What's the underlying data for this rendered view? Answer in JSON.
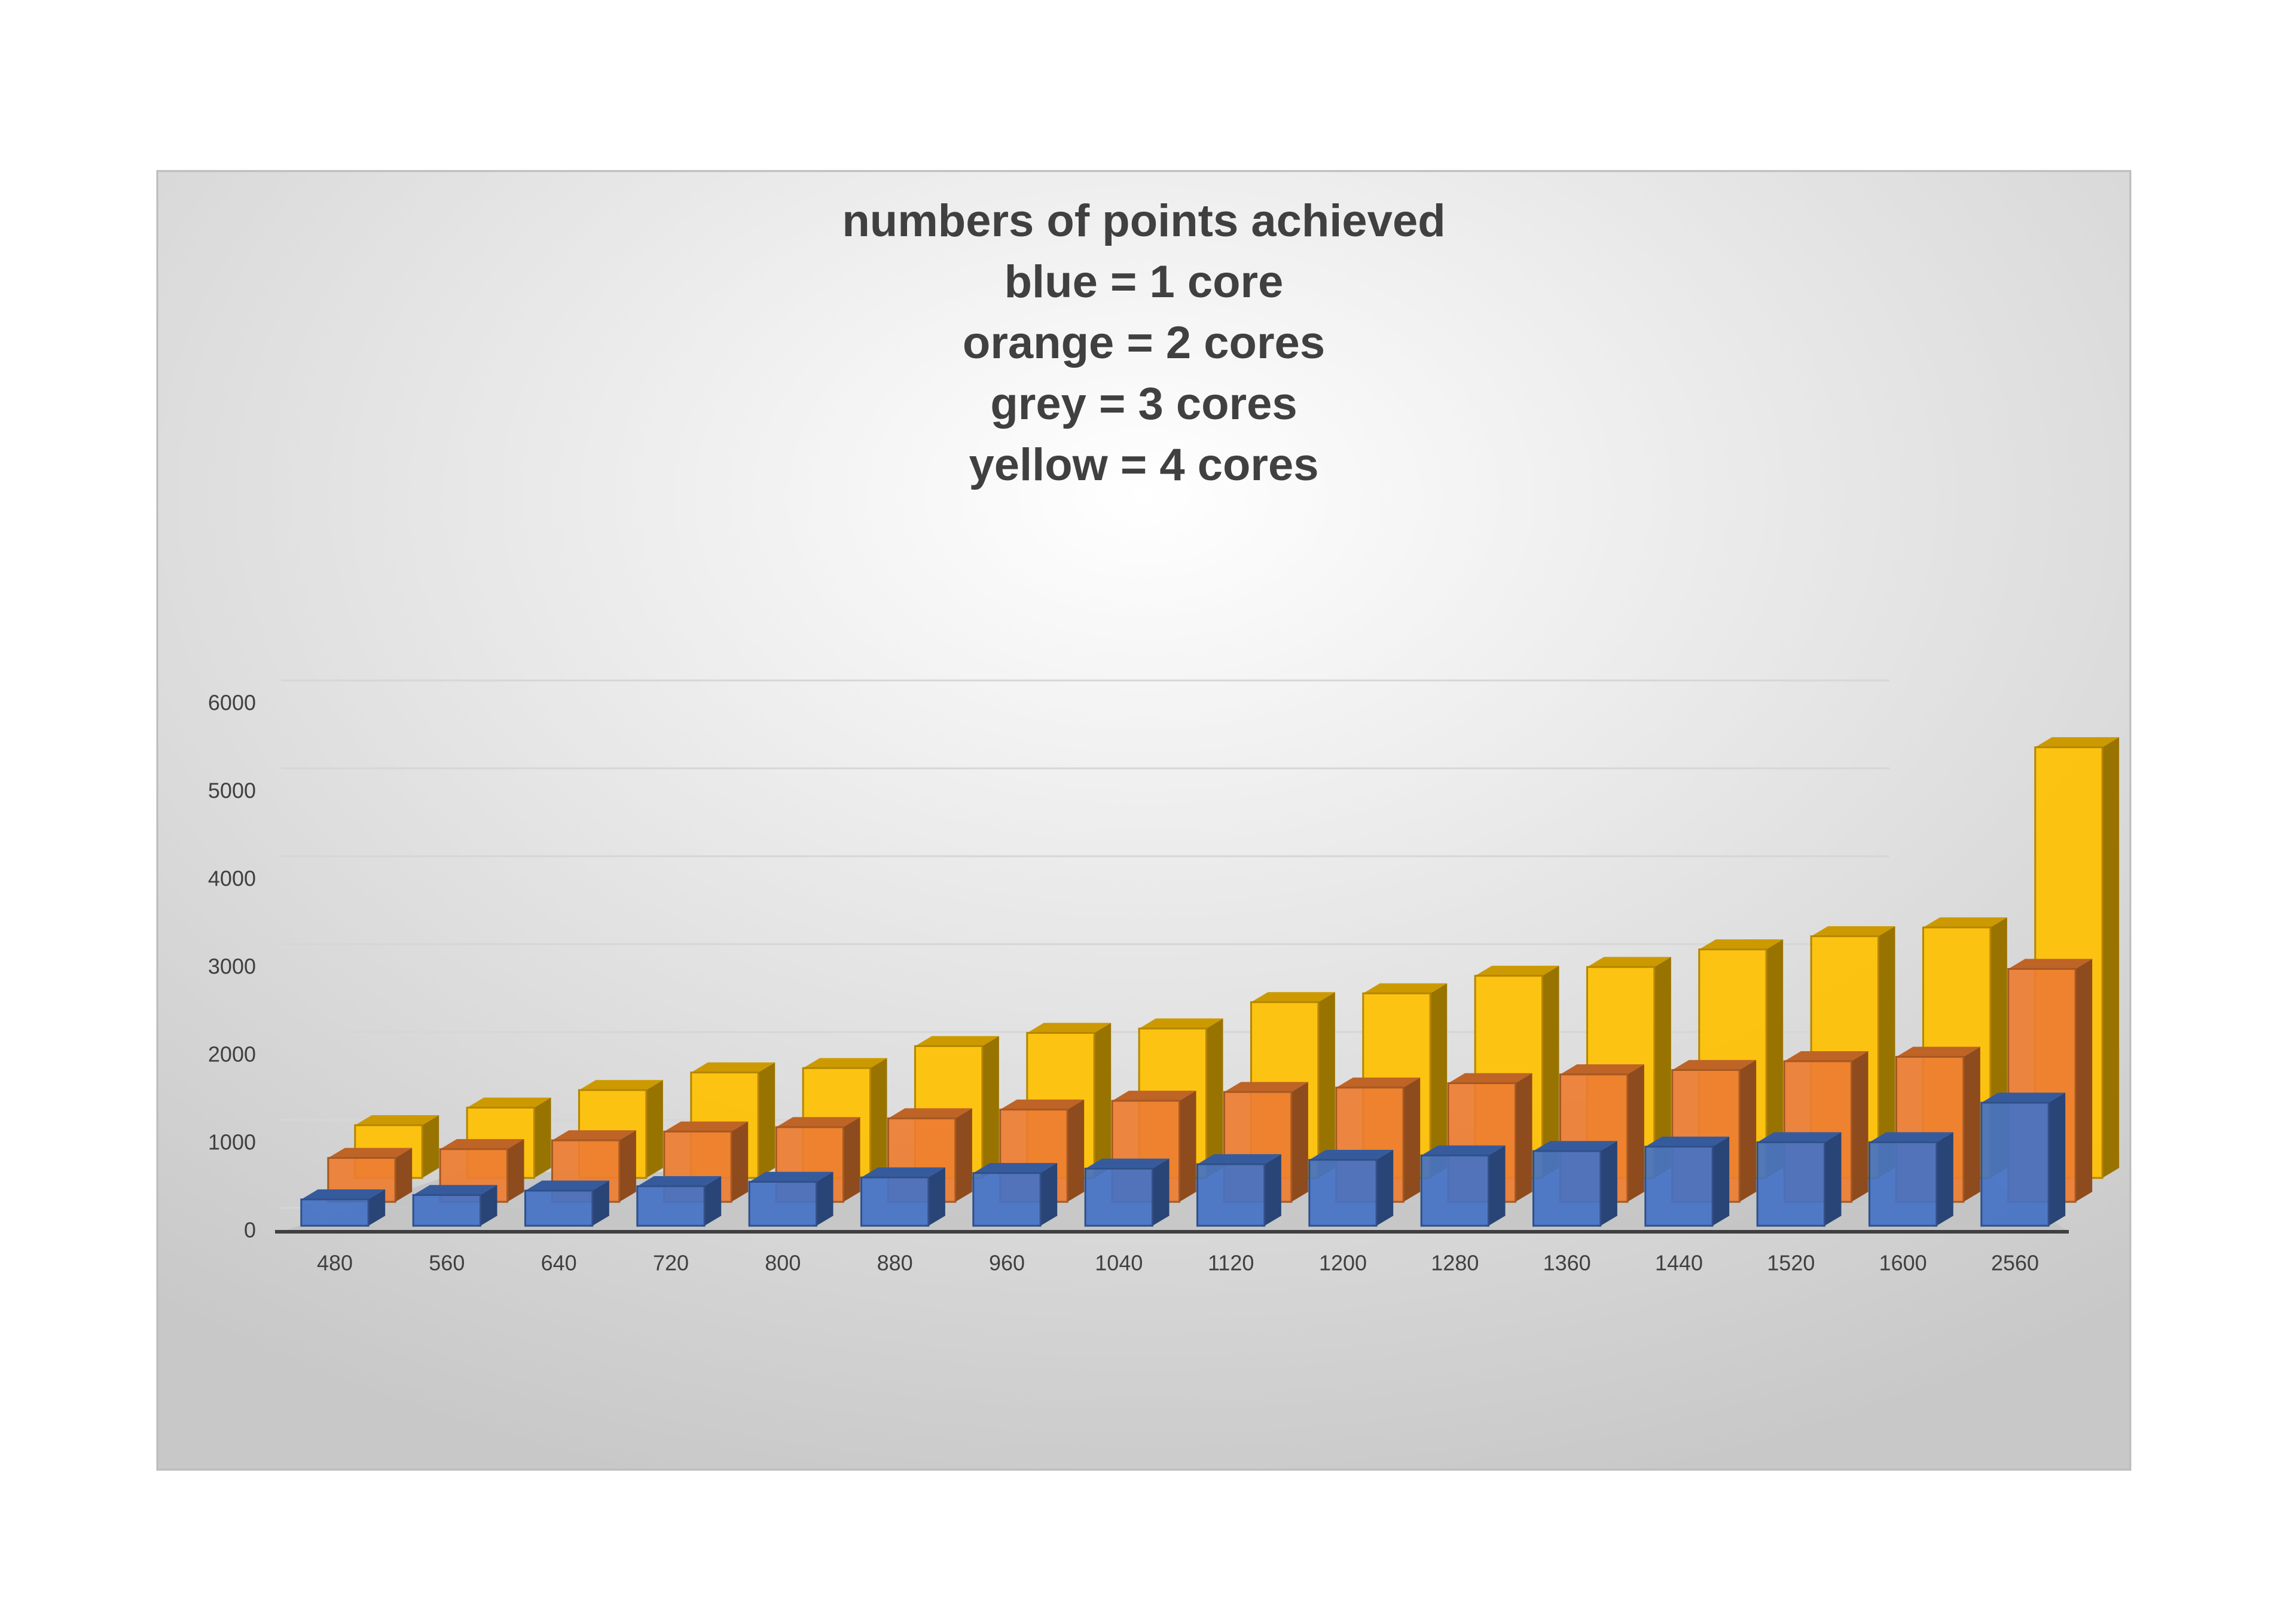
{
  "chart_data": {
    "type": "bar3d",
    "title": [
      "numbers of points achieved",
      "blue = 1 core",
      "orange = 2 cores",
      "grey = 3 cores",
      "yellow = 4 cores"
    ],
    "categories": [
      "480",
      "560",
      "640",
      "720",
      "800",
      "880",
      "960",
      "1040",
      "1120",
      "1200",
      "1280",
      "1360",
      "1440",
      "1520",
      "1600",
      "2560"
    ],
    "series": [
      {
        "color": "#4472c4",
        "values": [
          300,
          350,
          400,
          450,
          500,
          550,
          600,
          650,
          700,
          750,
          800,
          850,
          900,
          950,
          950,
          1400
        ]
      },
      {
        "color": "#ed7d31",
        "values": [
          500,
          600,
          700,
          800,
          850,
          950,
          1050,
          1150,
          1250,
          1300,
          1350,
          1450,
          1500,
          1600,
          1650,
          2650
        ]
      },
      {
        "color": "#ffc000",
        "values": [
          600,
          800,
          1000,
          1200,
          1250,
          1500,
          1650,
          1700,
          2000,
          2100,
          2300,
          2400,
          2600,
          2750,
          2850,
          4900
        ]
      }
    ],
    "ylim": [
      0,
      6000
    ],
    "yticks": [
      0,
      1000,
      2000,
      3000,
      4000,
      5000,
      6000
    ],
    "grid": true
  }
}
